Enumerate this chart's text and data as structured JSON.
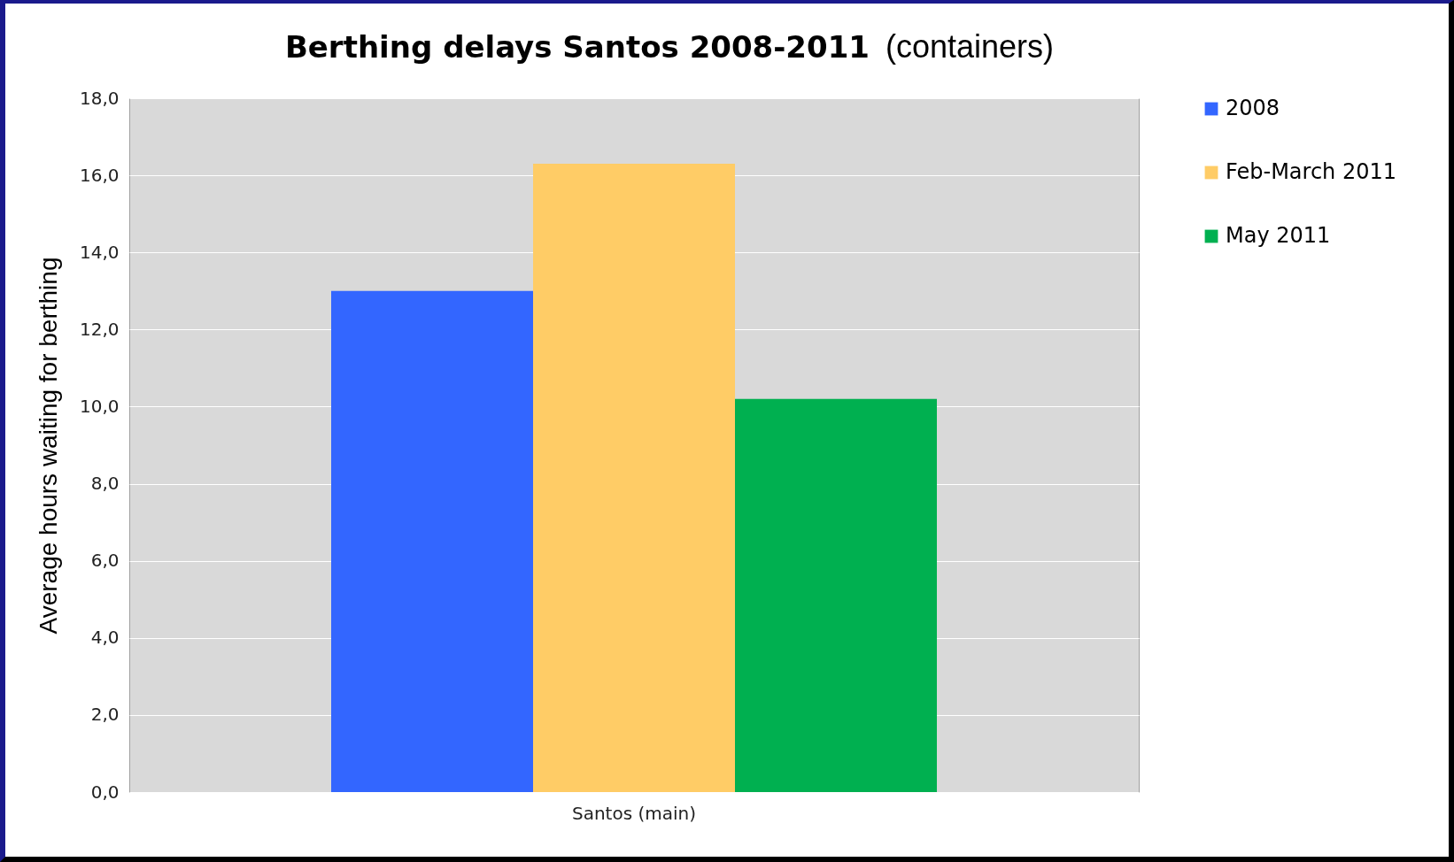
{
  "chart_data": {
    "type": "bar",
    "title": "Berthing delays Santos 2008-2011",
    "subtitle": "(containers)",
    "ylabel": "Average hours waiting for berthing",
    "categories": [
      "Santos (main)"
    ],
    "series": [
      {
        "name": "2008",
        "color": "#3366ff",
        "values": [
          13.0
        ]
      },
      {
        "name": "Feb-March 2011",
        "color": "#ffcc66",
        "values": [
          16.3
        ]
      },
      {
        "name": "May 2011",
        "color": "#00b050",
        "values": [
          10.2
        ]
      }
    ],
    "ylim": [
      0,
      18
    ],
    "yticks": [
      {
        "value": 0,
        "label": "0,0"
      },
      {
        "value": 2,
        "label": "2,0"
      },
      {
        "value": 4,
        "label": "4,0"
      },
      {
        "value": 6,
        "label": "6,0"
      },
      {
        "value": 8,
        "label": "8,0"
      },
      {
        "value": 10,
        "label": "10,0"
      },
      {
        "value": 12,
        "label": "12,0"
      },
      {
        "value": 14,
        "label": "14,0"
      },
      {
        "value": 16,
        "label": "16,0"
      },
      {
        "value": 18,
        "label": "18,0"
      }
    ],
    "grid": "y",
    "legend": "right"
  }
}
